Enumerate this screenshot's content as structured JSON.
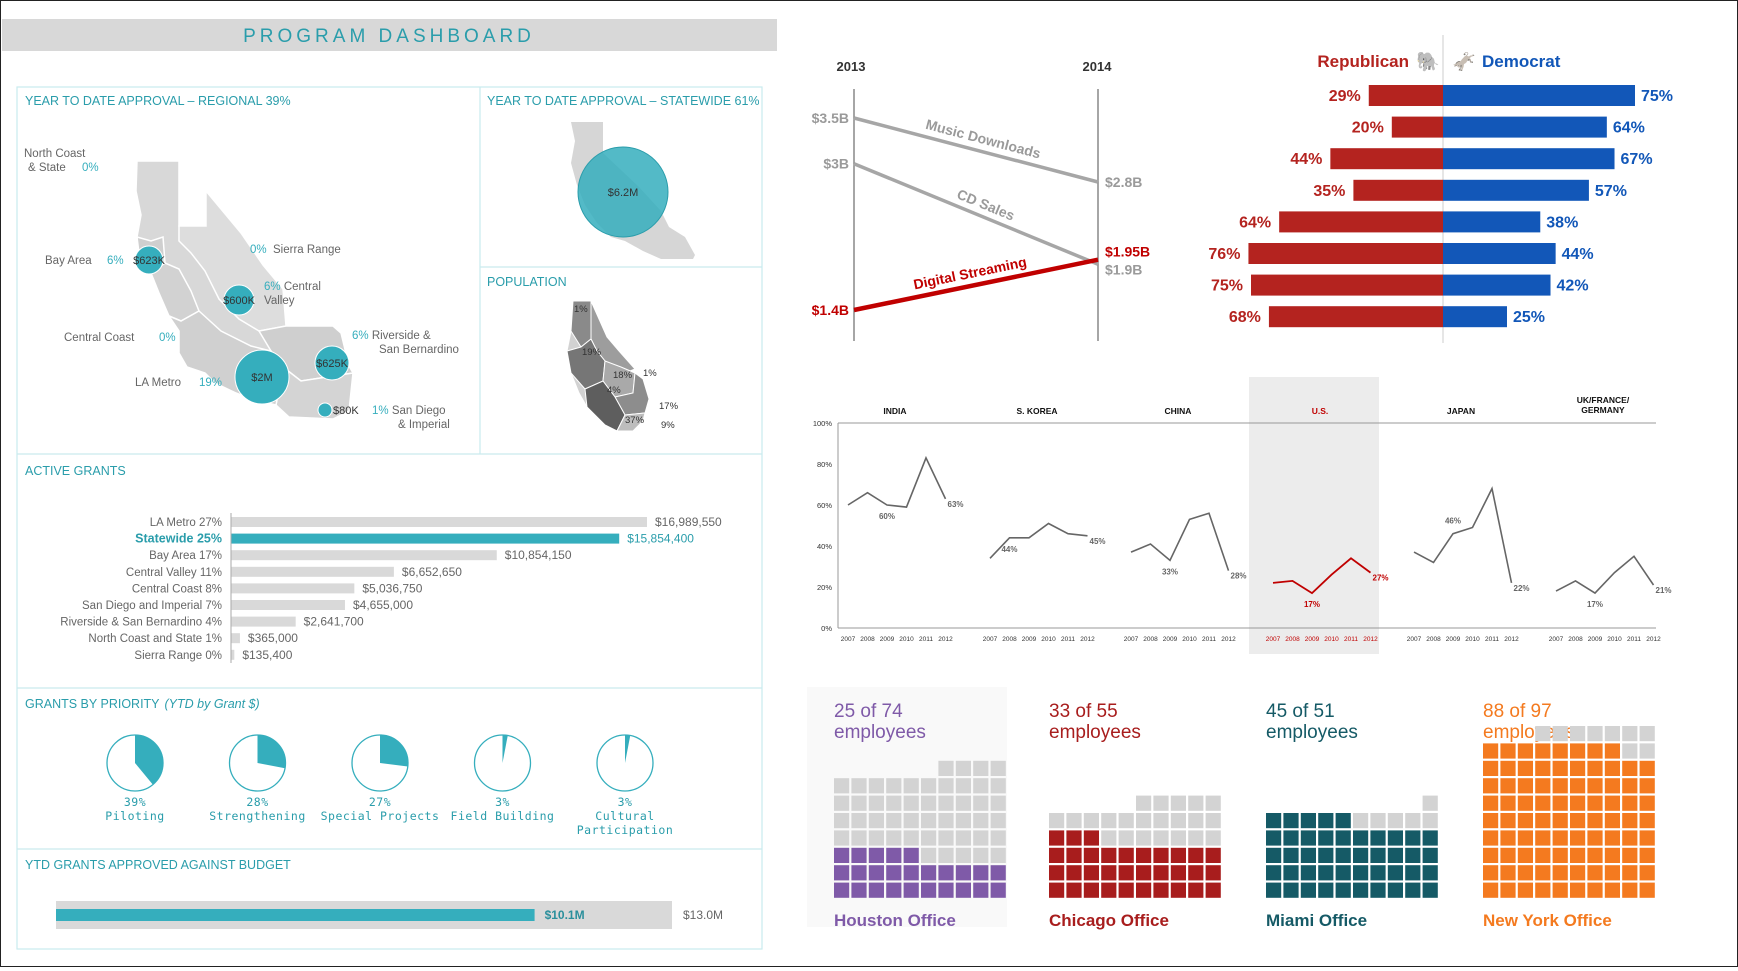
{
  "dashboard": {
    "title": "PROGRAM DASHBOARD",
    "regional": {
      "heading": "YEAR TO DATE APPROVAL – REGIONAL 39%",
      "regions": [
        {
          "name": "North Coast\n& State",
          "pct": "0%"
        },
        {
          "name": "0%",
          "pct": "Sierra Range",
          "pct_first": true
        },
        {
          "name": "Bay Area",
          "pct": "6%",
          "amount": "$623K"
        },
        {
          "name": "6% Central\nValley",
          "amount": "$600K"
        },
        {
          "name": "Central Coast",
          "pct": "0%"
        },
        {
          "name": "6% Riverside &\nSan Bernardino",
          "amount": "$625K"
        },
        {
          "name": "LA Metro",
          "pct": "19%",
          "amount": "$2M"
        },
        {
          "name": "1% San Diego\n& Imperial",
          "amount": "$80K"
        }
      ]
    },
    "statewide": {
      "heading": "YEAR TO DATE APPROVAL – STATEWIDE 61%",
      "amount": "$6.2M"
    },
    "population": {
      "heading": "POPULATION",
      "labels": [
        "1%",
        "19%",
        "18%",
        "1%",
        "4%",
        "17%",
        "37%",
        "9%"
      ]
    },
    "active_grants": {
      "heading": "ACTIVE GRANTS",
      "rows": [
        {
          "label": "LA Metro 27%",
          "value": 16989550,
          "text": "$16,989,550",
          "highlight": false
        },
        {
          "label": "Statewide 25%",
          "value": 15854400,
          "text": "$15,854,400",
          "highlight": true
        },
        {
          "label": "Bay Area 17%",
          "value": 10854150,
          "text": "$10,854,150",
          "highlight": false
        },
        {
          "label": "Central Valley 11%",
          "value": 6652650,
          "text": "$6,652,650",
          "highlight": false
        },
        {
          "label": "Central Coast 8%",
          "value": 5036750,
          "text": "$5,036,750",
          "highlight": false
        },
        {
          "label": "San Diego and Imperial 7%",
          "value": 4655000,
          "text": "$4,655,000",
          "highlight": false
        },
        {
          "label": "Riverside & San Bernardino 4%",
          "value": 2641700,
          "text": "$2,641,700",
          "highlight": false
        },
        {
          "label": "North Coast and State 1%",
          "value": 365000,
          "text": "$365,000",
          "highlight": false
        },
        {
          "label": "Sierra Range 0%",
          "value": 135400,
          "text": "$135,400",
          "highlight": false
        }
      ]
    },
    "priority": {
      "heading": "GRANTS BY PRIORITY",
      "heading_note": "(YTD by Grant $)",
      "items": [
        {
          "pct": 39,
          "pct_text": "39%",
          "label": "Piloting"
        },
        {
          "pct": 28,
          "pct_text": "28%",
          "label": "Strengthening"
        },
        {
          "pct": 27,
          "pct_text": "27%",
          "label": "Special Projects"
        },
        {
          "pct": 3,
          "pct_text": "3%",
          "label": "Field Building"
        },
        {
          "pct": 3,
          "pct_text": "3%",
          "label": "Cultural\nParticipation"
        }
      ]
    },
    "budget": {
      "heading": "YTD GRANTS APPROVED AGAINST BUDGET",
      "approved": 10.1,
      "approved_text": "$10.1M",
      "budget": 13.0,
      "budget_text": "$13.0M"
    }
  },
  "chart_data": [
    {
      "type": "line",
      "chart": "slope",
      "x": [
        "2013",
        "2014"
      ],
      "series": [
        {
          "name": "Music Downloads",
          "values": [
            3.5,
            2.8
          ],
          "labels": [
            "$3.5B",
            "$2.8B"
          ],
          "color": "#a6a6a6"
        },
        {
          "name": "CD Sales",
          "values": [
            3.0,
            1.9
          ],
          "labels": [
            "$3B",
            "$1.9B"
          ],
          "color": "#a6a6a6"
        },
        {
          "name": "Digital Streaming",
          "values": [
            1.4,
            1.95
          ],
          "labels": [
            "$1.4B",
            "$1.95B"
          ],
          "color": "#c00000"
        }
      ]
    },
    {
      "type": "bar",
      "chart": "diverging",
      "legend": {
        "left": "Republican",
        "right": "Democrat"
      },
      "colors": {
        "left": "#b4231f",
        "right": "#1257b8"
      },
      "series": [
        {
          "name": "Republican",
          "values": [
            29,
            20,
            44,
            35,
            64,
            76,
            75,
            68
          ]
        },
        {
          "name": "Democrat",
          "values": [
            75,
            64,
            67,
            57,
            38,
            44,
            42,
            25
          ]
        }
      ]
    },
    {
      "type": "line",
      "chart": "small-multiples",
      "x": [
        "2007",
        "2008",
        "2009",
        "2010",
        "2011",
        "2012"
      ],
      "ylim": [
        0,
        100
      ],
      "yticks": [
        "0%",
        "20%",
        "40%",
        "60%",
        "80%",
        "100%"
      ],
      "series": [
        {
          "name": "INDIA",
          "values": [
            60,
            66,
            60,
            59,
            83,
            63
          ],
          "label": "60%",
          "label_index": 2,
          "end_label": "63%",
          "highlight": false
        },
        {
          "name": "S. KOREA",
          "values": [
            34,
            44,
            44,
            51,
            46,
            45
          ],
          "label": "44%",
          "label_index": 1,
          "end_label": "45%",
          "highlight": false
        },
        {
          "name": "CHINA",
          "values": [
            37,
            41,
            33,
            53,
            56,
            28
          ],
          "label": "33%",
          "label_index": 2,
          "end_label": "28%",
          "highlight": false
        },
        {
          "name": "U.S.",
          "values": [
            22,
            23,
            17,
            26,
            34,
            27
          ],
          "label": "17%",
          "label_index": 2,
          "end_label": "27%",
          "highlight": true
        },
        {
          "name": "JAPAN",
          "values": [
            37,
            32,
            46,
            49,
            68,
            22
          ],
          "label": "46%",
          "label_index": 2,
          "end_label": "22%",
          "highlight": false
        },
        {
          "name": "UK/FRANCE/\nGERMANY",
          "values": [
            18,
            23,
            17,
            27,
            35,
            21
          ],
          "label": "17%",
          "label_index": 2,
          "end_label": "21%",
          "highlight": false
        }
      ]
    },
    {
      "type": "waffle",
      "chart": "waffle",
      "offices": [
        {
          "title": "25 of 74",
          "subtitle": "employees",
          "name": "Houston Office",
          "filled": 25,
          "total": 74,
          "color": "#7f5aa8"
        },
        {
          "title": "33 of 55",
          "subtitle": "employees",
          "name": "Chicago Office",
          "filled": 33,
          "total": 55,
          "color": "#a81d1d"
        },
        {
          "title": "45 of 51",
          "subtitle": "employees",
          "name": "Miami Office",
          "filled": 45,
          "total": 51,
          "color": "#155a66"
        },
        {
          "title": "88 of 97",
          "subtitle": "employees",
          "name": "New York Office",
          "filled": 88,
          "total": 97,
          "color": "#f47a1f"
        }
      ]
    }
  ],
  "colors": {
    "teal": "#35aebd",
    "teal_dark": "#2a9dab",
    "grey_bar": "#d9d9d9",
    "map_grey": "#d6d6d6"
  }
}
